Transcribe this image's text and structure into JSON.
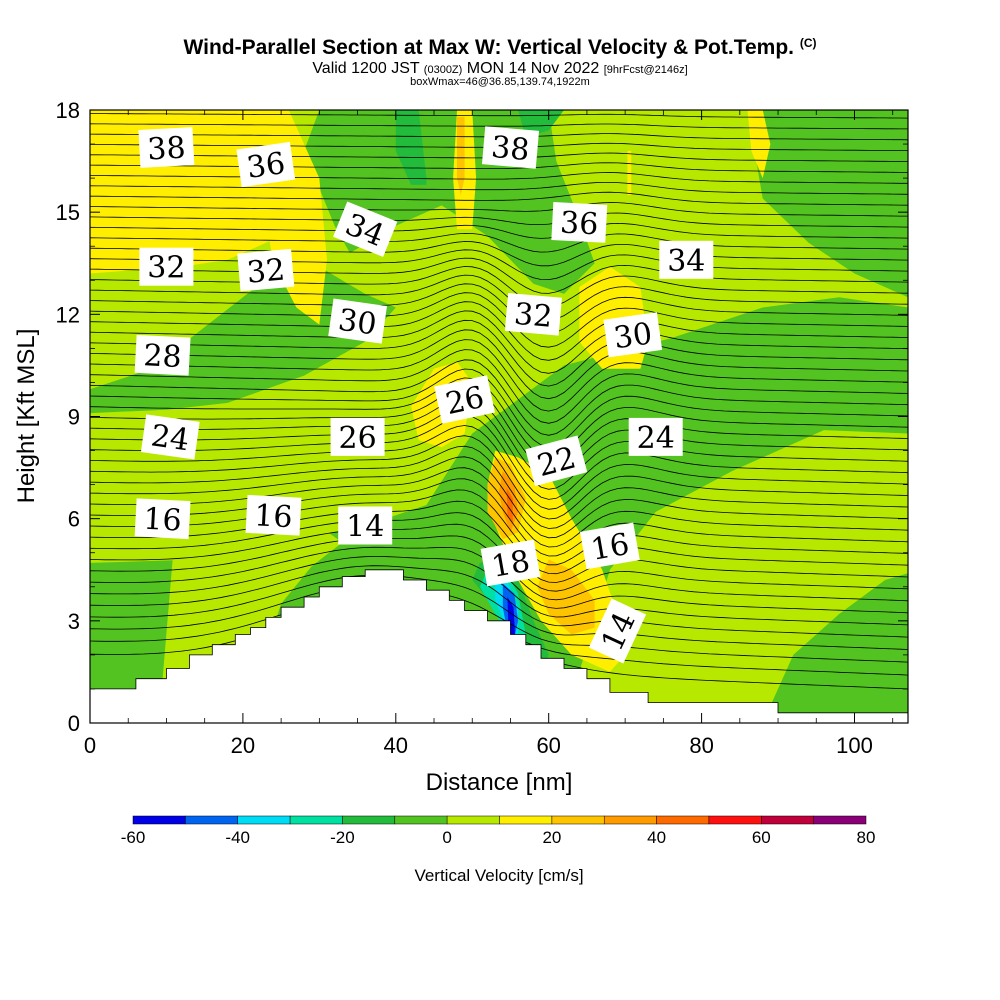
{
  "title": {
    "main": "Wind-Parallel Section at Max W: Vertical Velocity & Pot.Temp.",
    "copyright": "(C)",
    "valid_pre": "Valid 1200 JST",
    "valid_z": "(0300Z)",
    "valid_post": "MON 14 Nov 2022",
    "fcst": "[9hrFcst@2146z]",
    "box": "boxWmax=46@36.85,139.74,1922m"
  },
  "chart_data": {
    "type": "heatmap",
    "xlabel": "Distance [nm]",
    "ylabel": "Height [Kft MSL]",
    "xlim": [
      0,
      107
    ],
    "ylim": [
      0,
      18
    ],
    "x_ticks": [
      0,
      20,
      40,
      60,
      80,
      100
    ],
    "y_ticks": [
      0,
      3,
      6,
      9,
      12,
      15,
      18
    ],
    "colorbar": {
      "label": "Vertical Velocity [cm/s]",
      "levels": [
        -60,
        -50,
        -40,
        -30,
        -20,
        -10,
        0,
        10,
        20,
        30,
        40,
        50,
        60,
        70,
        80
      ],
      "tick_labels": [
        "-60",
        "-40",
        "-20",
        "0",
        "20",
        "40",
        "60",
        "80"
      ],
      "colors": [
        "#0000e6",
        "#0064f0",
        "#00dcf5",
        "#00e0a0",
        "#22bb3b",
        "#52c320",
        "#b7e800",
        "#ffee00",
        "#ffc400",
        "#ff9b00",
        "#ff6a00",
        "#ff1010",
        "#c0003a",
        "#8a0077"
      ]
    },
    "terrain": [
      [
        0,
        1
      ],
      [
        6,
        1
      ],
      [
        6,
        1.3
      ],
      [
        10,
        1.3
      ],
      [
        10,
        1.6
      ],
      [
        13,
        1.6
      ],
      [
        13,
        2
      ],
      [
        16,
        2
      ],
      [
        16,
        2.3
      ],
      [
        19,
        2.3
      ],
      [
        19,
        2.6
      ],
      [
        21,
        2.6
      ],
      [
        21,
        2.8
      ],
      [
        23,
        2.8
      ],
      [
        23,
        3.1
      ],
      [
        25,
        3.1
      ],
      [
        25,
        3.4
      ],
      [
        28,
        3.4
      ],
      [
        28,
        3.7
      ],
      [
        30,
        3.7
      ],
      [
        30,
        4.0
      ],
      [
        33,
        4.0
      ],
      [
        33,
        4.3
      ],
      [
        36,
        4.3
      ],
      [
        36,
        4.5
      ],
      [
        41,
        4.5
      ],
      [
        41,
        4.2
      ],
      [
        44,
        4.2
      ],
      [
        44,
        3.9
      ],
      [
        47,
        3.9
      ],
      [
        47,
        3.6
      ],
      [
        49,
        3.6
      ],
      [
        49,
        3.3
      ],
      [
        52,
        3.3
      ],
      [
        52,
        3.0
      ],
      [
        55,
        3.0
      ],
      [
        55,
        2.6
      ],
      [
        57,
        2.6
      ],
      [
        57,
        2.3
      ],
      [
        59,
        2.3
      ],
      [
        59,
        1.9
      ],
      [
        62,
        1.9
      ],
      [
        62,
        1.6
      ],
      [
        65,
        1.6
      ],
      [
        65,
        1.3
      ],
      [
        68,
        1.3
      ],
      [
        68,
        0.9
      ],
      [
        73,
        0.9
      ],
      [
        73,
        0.6
      ],
      [
        90,
        0.6
      ],
      [
        90,
        0.3
      ],
      [
        107,
        0.3
      ]
    ],
    "wind_regions": [
      {
        "w": 5,
        "poly": [
          [
            0,
            0
          ],
          [
            107,
            0
          ],
          [
            107,
            18
          ],
          [
            0,
            18
          ]
        ]
      },
      {
        "w": -5,
        "poly": [
          [
            0,
            4.7
          ],
          [
            14,
            4.8
          ],
          [
            26,
            5.3
          ],
          [
            36,
            5.8
          ],
          [
            44,
            6.4
          ],
          [
            50,
            8.5
          ],
          [
            62,
            10.5
          ],
          [
            76,
            11.3
          ],
          [
            88,
            12.2
          ],
          [
            98,
            12.5
          ],
          [
            107,
            12.2
          ],
          [
            107,
            0
          ],
          [
            0,
            0
          ]
        ]
      },
      {
        "w": 5,
        "poly": [
          [
            9,
            0
          ],
          [
            20,
            0
          ],
          [
            25,
            3.5
          ],
          [
            29,
            4.6
          ],
          [
            33,
            5.3
          ],
          [
            28,
            6.1
          ],
          [
            19,
            6.3
          ],
          [
            11,
            5.3
          ]
        ]
      },
      {
        "w": 5,
        "poly": [
          [
            62,
            0
          ],
          [
            88,
            0
          ],
          [
            92,
            2
          ],
          [
            98,
            3.2
          ],
          [
            104,
            4.2
          ],
          [
            107,
            4.4
          ],
          [
            107,
            8.5
          ],
          [
            96,
            8.6
          ],
          [
            84,
            7.4
          ],
          [
            74,
            6.2
          ],
          [
            68,
            4.5
          ]
        ]
      },
      {
        "w": -5,
        "poly": [
          [
            0,
            9.8
          ],
          [
            8,
            10.4
          ],
          [
            16,
            11.8
          ],
          [
            24,
            13.2
          ],
          [
            30,
            13.4
          ],
          [
            36,
            12.6
          ],
          [
            40,
            12.2
          ],
          [
            36,
            11.2
          ],
          [
            28,
            10.2
          ],
          [
            18,
            9.4
          ],
          [
            10,
            9.2
          ],
          [
            0,
            9.1
          ]
        ]
      },
      {
        "w": -5,
        "poly": [
          [
            28,
            16.8
          ],
          [
            30,
            18
          ],
          [
            60,
            18
          ],
          [
            61,
            16.5
          ],
          [
            64,
            14.8
          ],
          [
            66,
            13.5
          ],
          [
            62,
            12.6
          ],
          [
            58,
            12.9
          ],
          [
            52,
            14.3
          ],
          [
            46,
            15.2
          ],
          [
            40,
            14.6
          ],
          [
            34,
            13.8
          ],
          [
            32,
            14.6
          ]
        ]
      },
      {
        "w": -5,
        "poly": [
          [
            86,
            18
          ],
          [
            107,
            18
          ],
          [
            107,
            12.5
          ],
          [
            100,
            13.2
          ],
          [
            94,
            14.1
          ],
          [
            88,
            15.4
          ]
        ]
      },
      {
        "w": 15,
        "poly": [
          [
            0,
            18
          ],
          [
            24,
            18
          ],
          [
            26,
            16.5
          ],
          [
            28,
            15.2
          ],
          [
            24,
            14.2
          ],
          [
            18,
            13.6
          ],
          [
            12,
            13.4
          ],
          [
            6,
            13.3
          ],
          [
            0,
            13.2
          ]
        ]
      },
      {
        "w": 15,
        "poly": [
          [
            20,
            18
          ],
          [
            26,
            18
          ],
          [
            30,
            16
          ],
          [
            31,
            13.6
          ],
          [
            30,
            11.7
          ],
          [
            27,
            12.2
          ],
          [
            24,
            13.5
          ],
          [
            22,
            16
          ]
        ]
      },
      {
        "w": -15,
        "poly": [
          [
            40,
            18
          ],
          [
            43,
            18
          ],
          [
            44,
            16
          ],
          [
            44,
            15.8
          ],
          [
            42,
            15.8
          ],
          [
            40,
            16.8
          ]
        ]
      },
      {
        "w": -15,
        "poly": [
          [
            56,
            18
          ],
          [
            62,
            18
          ],
          [
            60,
            17.4
          ],
          [
            57,
            17.2
          ]
        ]
      },
      {
        "w": 15,
        "poly": [
          [
            48,
            18
          ],
          [
            50,
            18
          ],
          [
            50.5,
            16
          ],
          [
            50,
            14.5
          ],
          [
            48,
            14.5
          ],
          [
            47.5,
            16
          ]
        ]
      },
      {
        "w": 15,
        "poly": [
          [
            42,
            9.3
          ],
          [
            45,
            10.4
          ],
          [
            48,
            10.6
          ],
          [
            50,
            10
          ],
          [
            49,
            8.5
          ],
          [
            46,
            8.1
          ],
          [
            43,
            8.3
          ]
        ]
      },
      {
        "w": 15,
        "poly": [
          [
            53,
            8
          ],
          [
            56,
            7.8
          ],
          [
            60,
            7.3
          ],
          [
            63,
            6
          ],
          [
            67,
            4.5
          ],
          [
            69,
            3.2
          ],
          [
            70,
            2
          ],
          [
            68,
            1.5
          ],
          [
            63,
            2
          ],
          [
            59,
            3
          ],
          [
            56,
            4.2
          ],
          [
            53,
            5.8
          ],
          [
            52,
            7
          ]
        ]
      },
      {
        "w": 15,
        "poly": [
          [
            64,
            12.8
          ],
          [
            68,
            13.4
          ],
          [
            72,
            12.8
          ],
          [
            73,
            11.2
          ],
          [
            72,
            10.4
          ],
          [
            67,
            10.4
          ],
          [
            64,
            11.2
          ]
        ]
      },
      {
        "w": 15,
        "poly": [
          [
            70.3,
            16.8
          ],
          [
            70.8,
            16.8
          ],
          [
            70.8,
            15.5
          ],
          [
            70.3,
            15.5
          ]
        ]
      },
      {
        "w": 25,
        "poly": [
          [
            53,
            7.8
          ],
          [
            55,
            7.6
          ],
          [
            57,
            6.6
          ],
          [
            56,
            5.6
          ],
          [
            54,
            5.4
          ],
          [
            52,
            6.2
          ],
          [
            52,
            7
          ]
        ]
      },
      {
        "w": 25,
        "poly": [
          [
            60,
            4.8
          ],
          [
            63,
            4.5
          ],
          [
            66,
            3.6
          ],
          [
            66,
            2.8
          ],
          [
            63,
            2.6
          ],
          [
            60,
            3.2
          ],
          [
            58.5,
            4
          ]
        ]
      },
      {
        "w": 25,
        "poly": [
          [
            48,
            17.8
          ],
          [
            49,
            17.8
          ],
          [
            49,
            16
          ],
          [
            48.5,
            15.5
          ],
          [
            48,
            16
          ]
        ]
      },
      {
        "w": 35,
        "poly": [
          [
            54,
            7.4
          ],
          [
            55.5,
            7
          ],
          [
            56,
            6.2
          ],
          [
            55,
            5.6
          ],
          [
            54,
            6.2
          ],
          [
            53.5,
            6.8
          ]
        ]
      },
      {
        "w": 45,
        "poly": [
          [
            54.5,
            6.9
          ],
          [
            55.3,
            6.6
          ],
          [
            55.3,
            5.9
          ],
          [
            54.6,
            6.1
          ]
        ]
      },
      {
        "w": -15,
        "poly": [
          [
            51,
            4.7
          ],
          [
            54,
            4.8
          ],
          [
            56,
            4.2
          ],
          [
            58,
            3
          ],
          [
            60,
            2
          ],
          [
            59.5,
            1.6
          ],
          [
            58,
            1.8
          ],
          [
            56,
            2.5
          ],
          [
            53,
            3.4
          ],
          [
            50,
            4.2
          ]
        ]
      },
      {
        "w": -25,
        "poly": [
          [
            52,
            4.5
          ],
          [
            54,
            4.6
          ],
          [
            56,
            3.8
          ],
          [
            57,
            2.6
          ],
          [
            56,
            2.2
          ],
          [
            53,
            3.2
          ],
          [
            51,
            4
          ]
        ]
      },
      {
        "w": -35,
        "poly": [
          [
            53,
            4.3
          ],
          [
            54.5,
            4.2
          ],
          [
            56,
            3.4
          ],
          [
            56,
            2.6
          ],
          [
            54.5,
            2.8
          ],
          [
            53,
            3.6
          ]
        ]
      },
      {
        "w": -45,
        "poly": [
          [
            54,
            4.1
          ],
          [
            55.5,
            3.8
          ],
          [
            56,
            3
          ],
          [
            55.5,
            2.5
          ],
          [
            54.5,
            2.8
          ],
          [
            54,
            3.4
          ]
        ]
      },
      {
        "w": -55,
        "poly": [
          [
            54.6,
            3.7
          ],
          [
            55.4,
            3.4
          ],
          [
            55.6,
            2.6
          ],
          [
            55,
            2.6
          ],
          [
            54.7,
            3
          ]
        ]
      },
      {
        "w": 15,
        "poly": [
          [
            86,
            18
          ],
          [
            88,
            18
          ],
          [
            89,
            17
          ],
          [
            88,
            16
          ],
          [
            86.5,
            16.8
          ]
        ]
      }
    ],
    "isentropes": {
      "theta_low": 12,
      "theta_high": 38,
      "start_left": 2.0,
      "end_left": 18.5,
      "start_right": 1.0,
      "end_right": 18.4
    },
    "isentrope_labels": [
      {
        "text": "38",
        "x": 10,
        "y": 16.9,
        "angle": -3
      },
      {
        "text": "36",
        "x": 23,
        "y": 16.4,
        "angle": -8
      },
      {
        "text": "34",
        "x": 36,
        "y": 14.5,
        "angle": 22
      },
      {
        "text": "32",
        "x": 10,
        "y": 13.4,
        "angle": 0
      },
      {
        "text": "32",
        "x": 23,
        "y": 13.3,
        "angle": -5
      },
      {
        "text": "30",
        "x": 35,
        "y": 11.8,
        "angle": 8
      },
      {
        "text": "28",
        "x": 9.5,
        "y": 10.8,
        "angle": 3
      },
      {
        "text": "24",
        "x": 10.5,
        "y": 8.4,
        "angle": 8
      },
      {
        "text": "26",
        "x": 35,
        "y": 8.4,
        "angle": 0
      },
      {
        "text": "26",
        "x": 49,
        "y": 9.5,
        "angle": -12
      },
      {
        "text": "38",
        "x": 55,
        "y": 16.9,
        "angle": 5
      },
      {
        "text": "36",
        "x": 64,
        "y": 14.7,
        "angle": 3
      },
      {
        "text": "34",
        "x": 78,
        "y": 13.6,
        "angle": 0
      },
      {
        "text": "32",
        "x": 58,
        "y": 12.0,
        "angle": 5
      },
      {
        "text": "30",
        "x": 71,
        "y": 11.4,
        "angle": -8
      },
      {
        "text": "24",
        "x": 74,
        "y": 8.4,
        "angle": 0
      },
      {
        "text": "22",
        "x": 61,
        "y": 7.7,
        "angle": -15
      },
      {
        "text": "16",
        "x": 9.5,
        "y": 6.0,
        "angle": 3
      },
      {
        "text": "16",
        "x": 24,
        "y": 6.1,
        "angle": 3
      },
      {
        "text": "14",
        "x": 36,
        "y": 5.8,
        "angle": 0
      },
      {
        "text": "18",
        "x": 55,
        "y": 4.7,
        "angle": -10
      },
      {
        "text": "16",
        "x": 68,
        "y": 5.2,
        "angle": -10
      },
      {
        "text": "14",
        "x": 69,
        "y": 2.7,
        "angle": -65
      }
    ]
  }
}
